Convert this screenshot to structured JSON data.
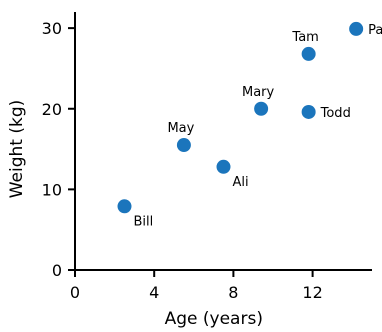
{
  "chart_data": {
    "type": "scatter",
    "xlabel": "Age (years)",
    "ylabel": "Weight (kg)",
    "xlim": [
      0,
      15
    ],
    "ylim": [
      0,
      32
    ],
    "xticks": [
      0,
      4,
      8,
      12
    ],
    "yticks": [
      0,
      10,
      20,
      30
    ],
    "grid": false,
    "point_color": "#1b75bc",
    "points": [
      {
        "label": "Bill",
        "x": 2.5,
        "y": 7.9,
        "label_pos": "below-right"
      },
      {
        "label": "May",
        "x": 5.5,
        "y": 15.5,
        "label_pos": "above"
      },
      {
        "label": "Ali",
        "x": 7.5,
        "y": 12.8,
        "label_pos": "below-right"
      },
      {
        "label": "Mary",
        "x": 9.4,
        "y": 20.0,
        "label_pos": "above"
      },
      {
        "label": "Tam",
        "x": 11.8,
        "y": 26.8,
        "label_pos": "above"
      },
      {
        "label": "Todd",
        "x": 11.8,
        "y": 19.6,
        "label_pos": "right"
      },
      {
        "label": "Paul",
        "x": 14.2,
        "y": 29.9,
        "label_pos": "right"
      }
    ]
  }
}
